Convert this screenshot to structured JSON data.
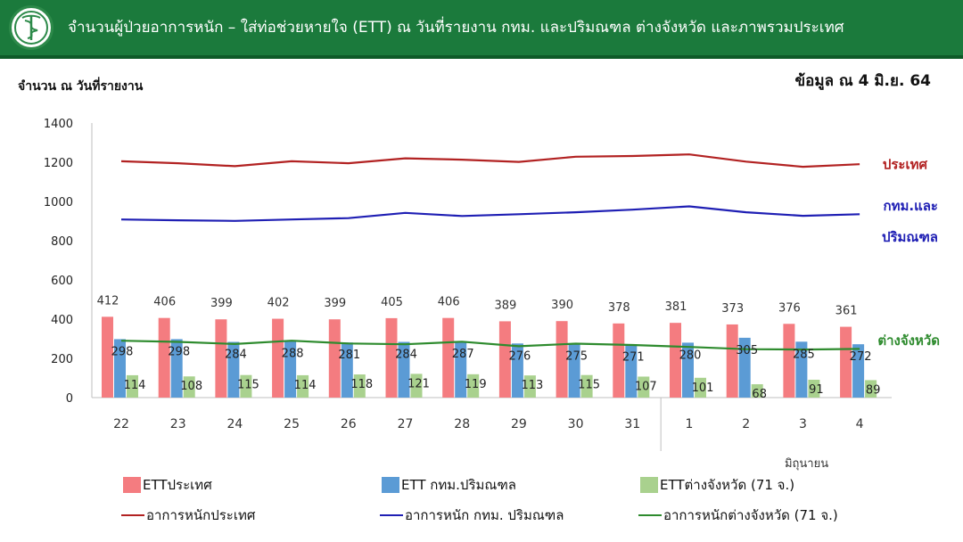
{
  "header": {
    "title": "จำนวนผู้ป่วยอาการหนัก – ใส่ท่อช่วยหายใจ (ETT) ณ วันที่รายงาน กทม. และปริมณฑล ต่างจังหวัด และภาพรวมประเทศ"
  },
  "chart_ylabel": "จำนวน ณ วันที่รายงาน",
  "date_note": "ข้อมูล ณ 4 มิ.ย. 64",
  "colors": {
    "header_bg": "#1b7a3c",
    "ett_country": "#f47c80",
    "ett_bkk": "#5b9bd5",
    "ett_province": "#a9d18e",
    "severe_country": "#b22222",
    "severe_bkk": "#1f1fb4",
    "severe_province": "#2e8b2e"
  },
  "chart_data": {
    "type": "bar",
    "categories": [
      "22",
      "23",
      "24",
      "25",
      "26",
      "27",
      "28",
      "29",
      "30",
      "31",
      "1",
      "2",
      "3",
      "4"
    ],
    "month_label": "มิถุนายน",
    "ylim": [
      0,
      1400
    ],
    "yticks": [
      0,
      200,
      400,
      600,
      800,
      1000,
      1200,
      1400
    ],
    "grid": false,
    "series": [
      {
        "name": "ETTประเทศ",
        "kind": "bar",
        "values": [
          412,
          406,
          399,
          402,
          399,
          405,
          406,
          389,
          390,
          378,
          381,
          373,
          376,
          361
        ]
      },
      {
        "name": "ETT กทม.ปริมณฑล",
        "kind": "bar",
        "values": [
          298,
          298,
          284,
          288,
          281,
          284,
          287,
          276,
          275,
          271,
          280,
          305,
          285,
          272
        ]
      },
      {
        "name": "ETTต่างจังหวัด (71 จ.)",
        "kind": "bar",
        "values": [
          114,
          108,
          115,
          114,
          118,
          121,
          119,
          113,
          115,
          107,
          101,
          68,
          91,
          89
        ]
      },
      {
        "name": "อาการหนักประเทศ",
        "kind": "line",
        "label": "ประเทศ",
        "values": [
          1205,
          1195,
          1180,
          1205,
          1195,
          1220,
          1213,
          1202,
          1228,
          1232,
          1240,
          1203,
          1177,
          1190
        ]
      },
      {
        "name": "อาการหนัก กทม. ปริมณฑล",
        "kind": "line",
        "label": "กทม.และปริมณฑล",
        "values": [
          908,
          904,
          901,
          908,
          915,
          942,
          926,
          935,
          945,
          958,
          975,
          945,
          927,
          935
        ]
      },
      {
        "name": "อาการหนักต่างจังหวัด (71 จ.)",
        "kind": "line",
        "label": "ต่างจังหวัด",
        "values": [
          290,
          284,
          273,
          290,
          276,
          272,
          285,
          262,
          275,
          268,
          258,
          247,
          245,
          248
        ]
      }
    ]
  }
}
